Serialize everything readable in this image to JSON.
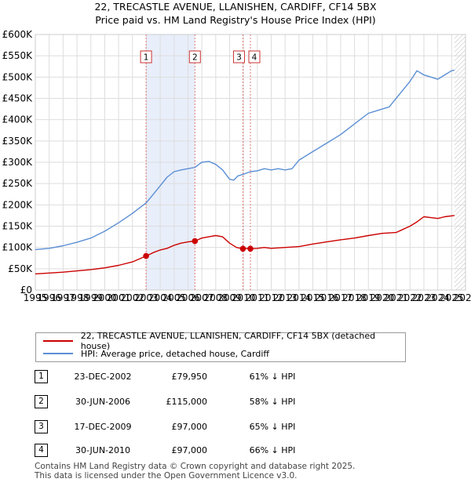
{
  "titles": {
    "line1": "22, TRECASTLE AVENUE, LLANISHEN, CARDIFF, CF14 5BX",
    "line2": "Price paid vs. HM Land Registry's House Price Index (HPI)"
  },
  "legend": {
    "price_label": "22, TRECASTLE AVENUE, LLANISHEN, CARDIFF, CF14 5BX (detached house)",
    "hpi_label": "HPI: Average price, detached house, Cardiff"
  },
  "transactions": [
    {
      "num": "1",
      "date": "23-DEC-2002",
      "price": "£79,950",
      "hpi": "61% ↓ HPI"
    },
    {
      "num": "2",
      "date": "30-JUN-2006",
      "price": "£115,000",
      "hpi": "58% ↓ HPI"
    },
    {
      "num": "3",
      "date": "17-DEC-2009",
      "price": "£97,000",
      "hpi": "65% ↓ HPI"
    },
    {
      "num": "4",
      "date": "30-JUN-2010",
      "price": "£97,000",
      "hpi": "66% ↓ HPI"
    }
  ],
  "footer": {
    "line1": "Contains HM Land Registry data © Crown copyright and database right 2025.",
    "line2": "This data is licensed under the Open Government Licence v3.0."
  },
  "colors": {
    "price_line": "#cc0000",
    "hpi_line": "#5b8fd4",
    "shade": "#e8eefa",
    "marker_line": "#e07a7a"
  },
  "chart_data": {
    "type": "line",
    "title": "Price paid vs. HM Land Registry's House Price Index (HPI)",
    "xlabel": "",
    "ylabel": "",
    "xlim": [
      1995,
      2026
    ],
    "ylim": [
      0,
      600000
    ],
    "x_ticks": [
      1995,
      1996,
      1997,
      1998,
      1999,
      2000,
      2001,
      2002,
      2003,
      2004,
      2005,
      2006,
      2007,
      2008,
      2009,
      2010,
      2011,
      2012,
      2013,
      2014,
      2015,
      2016,
      2017,
      2018,
      2019,
      2020,
      2021,
      2022,
      2023,
      2024,
      2025,
      2026
    ],
    "x_tick_labels": [
      "1995",
      "1996",
      "1997",
      "1998",
      "1999",
      "2000",
      "2001",
      "2002",
      "2003",
      "2004",
      "2005",
      "2006",
      "2007",
      "2008",
      "2009",
      "2010",
      "2011",
      "2012",
      "2013",
      "2014",
      "2015",
      "2016",
      "2017",
      "2018",
      "2019",
      "2020",
      "2021",
      "2022",
      "2023",
      "2024",
      "2025",
      "2026"
    ],
    "y_ticks": [
      0,
      50000,
      100000,
      150000,
      200000,
      250000,
      300000,
      350000,
      400000,
      450000,
      500000,
      550000,
      600000
    ],
    "y_tick_labels": [
      "£0",
      "£50K",
      "£100K",
      "£150K",
      "£200K",
      "£250K",
      "£300K",
      "£350K",
      "£400K",
      "£450K",
      "£500K",
      "£550K",
      "£600K"
    ],
    "grid": true,
    "shaded_range": [
      2002.98,
      2006.5
    ],
    "future_hatch_start": 2025.2,
    "series": [
      {
        "name": "22, TRECASTLE AVENUE, LLANISHEN, CARDIFF, CF14 5BX (detached house)",
        "x": [
          1995,
          1996,
          1997,
          1998,
          1999,
          2000,
          2001,
          2002,
          2002.98,
          2003.5,
          2004,
          2004.5,
          2005,
          2005.5,
          2006,
          2006.5,
          2007,
          2007.5,
          2008,
          2008.5,
          2009,
          2009.5,
          2009.96,
          2010.2,
          2010.5,
          2011,
          2011.5,
          2012,
          2013,
          2014,
          2015,
          2016,
          2017,
          2018,
          2019,
          2020,
          2021,
          2022,
          2022.5,
          2023,
          2023.5,
          2024,
          2024.5,
          2025.2
        ],
        "values": [
          38000,
          40000,
          42000,
          45000,
          48000,
          52000,
          58000,
          66000,
          79950,
          88000,
          94000,
          98000,
          105000,
          110000,
          113000,
          115000,
          122000,
          125000,
          128000,
          125000,
          110000,
          100000,
          97000,
          98000,
          97000,
          98000,
          100000,
          98000,
          100000,
          102000,
          108000,
          113000,
          118000,
          122000,
          128000,
          133000,
          135000,
          150000,
          160000,
          172000,
          170000,
          168000,
          172000,
          175000
        ]
      },
      {
        "name": "HPI: Average price, detached house, Cardiff",
        "x": [
          1995,
          1996,
          1997,
          1998,
          1999,
          2000,
          2001,
          2002,
          2003,
          2003.5,
          2004,
          2004.5,
          2005,
          2005.5,
          2006,
          2006.5,
          2007,
          2007.5,
          2008,
          2008.5,
          2009,
          2009.3,
          2009.6,
          2010,
          2010.5,
          2011,
          2011.5,
          2012,
          2012.5,
          2013,
          2013.5,
          2014,
          2015,
          2016,
          2017,
          2018,
          2019,
          2019.5,
          2020,
          2020.5,
          2021,
          2021.5,
          2022,
          2022.5,
          2023,
          2023.5,
          2024,
          2024.5,
          2025,
          2025.2
        ],
        "values": [
          95000,
          98000,
          104000,
          112000,
          122000,
          138000,
          158000,
          180000,
          205000,
          225000,
          245000,
          265000,
          278000,
          282000,
          285000,
          288000,
          300000,
          302000,
          295000,
          282000,
          260000,
          258000,
          268000,
          272000,
          278000,
          280000,
          285000,
          282000,
          285000,
          282000,
          285000,
          305000,
          325000,
          345000,
          365000,
          390000,
          415000,
          420000,
          425000,
          430000,
          450000,
          470000,
          490000,
          515000,
          505000,
          500000,
          495000,
          505000,
          515000,
          516000
        ]
      }
    ],
    "sales": [
      {
        "label": "1",
        "x": 2002.98,
        "value": 79950
      },
      {
        "label": "2",
        "x": 2006.5,
        "value": 115000
      },
      {
        "label": "3",
        "x": 2009.96,
        "value": 97000
      },
      {
        "label": "4",
        "x": 2010.5,
        "value": 97000
      }
    ]
  }
}
